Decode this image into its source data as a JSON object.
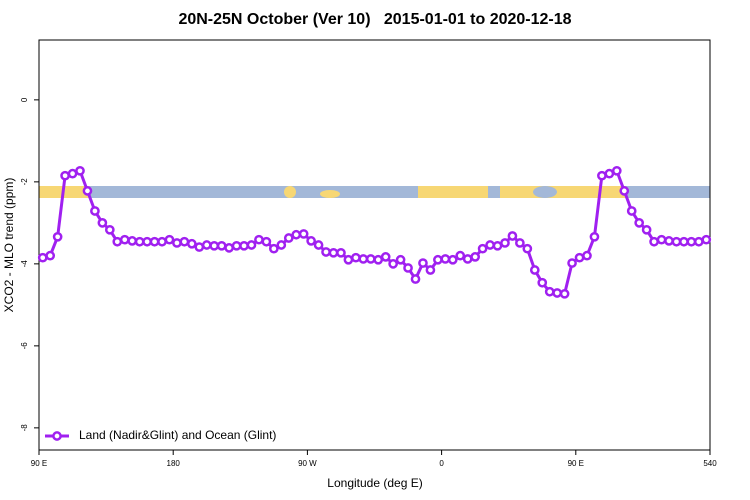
{
  "chart_data": {
    "type": "line",
    "title": "20N-25N October (Ver 10)   2015-01-01 to 2020-12-18",
    "xlabel": "Longitude (deg E)",
    "ylabel": "XCO2 - MLO trend (ppm)",
    "xlim": [
      90,
      540
    ],
    "xticks": [
      {
        "value": 90,
        "label": "90 E"
      },
      180,
      {
        "value": 270,
        "label": "90 W"
      },
      {
        "value": 360,
        "label": "0"
      },
      {
        "value": 450,
        "label": "90 E"
      },
      540
    ],
    "ylim": [
      -8.54,
      1.46
    ],
    "yticks": [
      0,
      -2,
      -4,
      -6,
      -8
    ],
    "legend": "bottom-left",
    "x": [
      92.5,
      97.5,
      102.5,
      107.5,
      112.5,
      117.5,
      122.5,
      127.5,
      132.5,
      137.5,
      142.5,
      147.5,
      152.5,
      157.5,
      162.5,
      167.5,
      172.5,
      177.5,
      182.5,
      187.5,
      192.5,
      197.5,
      202.5,
      207.5,
      212.5,
      217.5,
      222.5,
      227.5,
      232.5,
      237.5,
      242.5,
      247.5,
      252.5,
      257.5,
      262.5,
      267.5,
      272.5,
      277.5,
      282.5,
      287.5,
      292.5,
      297.5,
      302.5,
      307.5,
      312.5,
      317.5,
      322.5,
      327.5,
      332.5,
      337.5,
      342.5,
      347.5,
      352.5,
      357.5,
      362.5,
      367.5,
      372.5,
      377.5,
      382.5,
      387.5,
      392.5,
      397.5,
      402.5,
      407.5,
      412.5,
      417.5,
      422.5,
      427.5,
      432.5,
      437.5,
      442.5,
      447.5,
      452.5,
      457.5,
      462.5,
      467.5,
      472.5,
      477.5,
      482.5,
      487.5,
      492.5,
      497.5,
      502.5,
      507.5,
      512.5,
      517.5,
      522.5,
      527.5,
      532.5,
      537.5
    ],
    "series": [
      {
        "name": "Land (Nadir&Glint) and Ocean (Glint)",
        "color": "#a020f0",
        "values": [
          -3.85,
          -3.8,
          -3.34,
          -1.85,
          -1.8,
          -1.73,
          -2.22,
          -2.71,
          -3.0,
          -3.17,
          -3.46,
          -3.41,
          -3.44,
          -3.46,
          -3.46,
          -3.46,
          -3.46,
          -3.41,
          -3.49,
          -3.46,
          -3.51,
          -3.59,
          -3.54,
          -3.56,
          -3.56,
          -3.61,
          -3.56,
          -3.56,
          -3.54,
          -3.41,
          -3.46,
          -3.63,
          -3.54,
          -3.37,
          -3.29,
          -3.27,
          -3.44,
          -3.54,
          -3.71,
          -3.73,
          -3.73,
          -3.9,
          -3.85,
          -3.88,
          -3.88,
          -3.9,
          -3.83,
          -4.0,
          -3.9,
          -4.1,
          -4.37,
          -3.98,
          -4.15,
          -3.9,
          -3.88,
          -3.9,
          -3.8,
          -3.88,
          -3.83,
          -3.63,
          -3.54,
          -3.56,
          -3.49,
          -3.32,
          -3.49,
          -3.63,
          -4.15,
          -4.46,
          -4.68,
          -4.71,
          -4.73,
          -3.98,
          -3.85,
          -3.8,
          -3.34,
          -1.85,
          -1.8,
          -1.73,
          -2.22,
          -2.71,
          -3.0,
          -3.17,
          -3.46,
          -3.41,
          -3.44,
          -3.46,
          -3.46,
          -3.46,
          -3.46,
          -3.41
        ]
      }
    ]
  }
}
